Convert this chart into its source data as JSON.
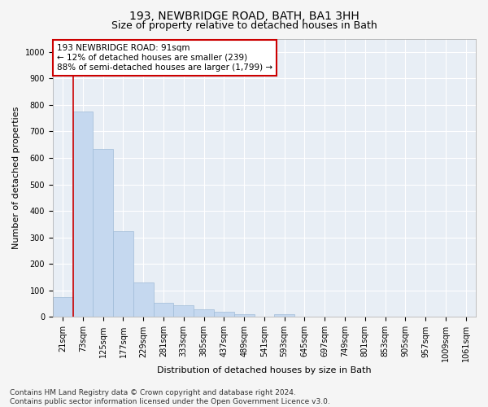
{
  "title": "193, NEWBRIDGE ROAD, BATH, BA1 3HH",
  "subtitle": "Size of property relative to detached houses in Bath",
  "xlabel": "Distribution of detached houses by size in Bath",
  "ylabel": "Number of detached properties",
  "bar_labels": [
    "21sqm",
    "73sqm",
    "125sqm",
    "177sqm",
    "229sqm",
    "281sqm",
    "333sqm",
    "385sqm",
    "437sqm",
    "489sqm",
    "541sqm",
    "593sqm",
    "645sqm",
    "697sqm",
    "749sqm",
    "801sqm",
    "853sqm",
    "905sqm",
    "957sqm",
    "1009sqm",
    "1061sqm"
  ],
  "bar_values": [
    75,
    775,
    635,
    325,
    130,
    55,
    45,
    30,
    20,
    10,
    0,
    10,
    0,
    0,
    0,
    0,
    0,
    0,
    0,
    0,
    0
  ],
  "bar_color": "#c5d8ef",
  "bar_edge_color": "#a0bcd8",
  "property_line_x": 0.5,
  "annotation_text": "193 NEWBRIDGE ROAD: 91sqm\n← 12% of detached houses are smaller (239)\n88% of semi-detached houses are larger (1,799) →",
  "annotation_box_color": "#ffffff",
  "annotation_box_edge": "#cc0000",
  "ylim": [
    0,
    1050
  ],
  "yticks": [
    0,
    100,
    200,
    300,
    400,
    500,
    600,
    700,
    800,
    900,
    1000
  ],
  "fig_bg_color": "#f5f5f5",
  "plot_bg_color": "#e8eef5",
  "grid_color": "#ffffff",
  "vline_color": "#cc0000",
  "footer": "Contains HM Land Registry data © Crown copyright and database right 2024.\nContains public sector information licensed under the Open Government Licence v3.0.",
  "title_fontsize": 10,
  "subtitle_fontsize": 9,
  "axis_label_fontsize": 8,
  "tick_fontsize": 7,
  "annotation_fontsize": 7.5,
  "footer_fontsize": 6.5
}
